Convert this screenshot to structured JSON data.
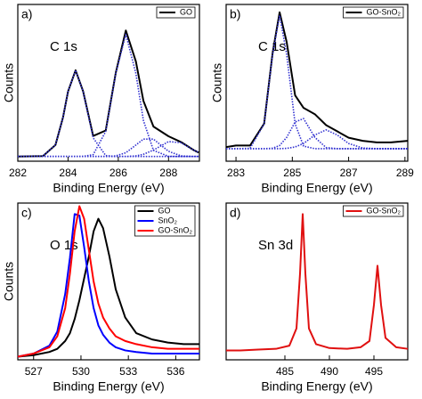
{
  "chart_data": [
    {
      "type": "line",
      "panel_label": "a)",
      "annotation": "C 1s",
      "xlabel": "Binding Energy (eV)",
      "ylabel": "Counts",
      "xlim": [
        282,
        289.23
      ],
      "xticks": [
        282,
        284,
        286,
        288
      ],
      "ylim": [
        0,
        1
      ],
      "legend": "upper right",
      "x": [
        282,
        283,
        283.5,
        283.8,
        284,
        284.3,
        284.6,
        285,
        285.5,
        285.9,
        286.3,
        286.7,
        287,
        287.4,
        288,
        288.5,
        289,
        289.2
      ],
      "series": [
        {
          "name": "GO",
          "color": "#000000",
          "values": [
            0.03,
            0.033,
            0.104,
            0.28,
            0.445,
            0.58,
            0.446,
            0.161,
            0.196,
            0.564,
            0.834,
            0.637,
            0.385,
            0.221,
            0.159,
            0.122,
            0.071,
            0.055
          ]
        },
        {
          "color": "#3030d0",
          "style": "dotted",
          "values": [
            0.03,
            0.033,
            0.104,
            0.28,
            0.445,
            0.58,
            0.445,
            0.149,
            0.036,
            0.03,
            0.03,
            0.03,
            0.03,
            0.03,
            0.03,
            0.03,
            0.03,
            0.03
          ]
        },
        {
          "color": "#3030d0",
          "style": "dotted",
          "values": [
            0.03,
            0.03,
            0.03,
            0.03,
            0.03,
            0.03,
            0.031,
            0.042,
            0.19,
            0.56,
            0.81,
            0.56,
            0.26,
            0.069,
            0.031,
            0.03,
            0.03,
            0.03
          ]
        },
        {
          "color": "#3030d0",
          "style": "dotted",
          "values": [
            0.03,
            0.03,
            0.03,
            0.03,
            0.03,
            0.03,
            0.03,
            0.03,
            0.03,
            0.034,
            0.054,
            0.103,
            0.141,
            0.141,
            0.063,
            0.034,
            0.03,
            0.03
          ]
        },
        {
          "color": "#3030d0",
          "style": "dotted",
          "values": [
            0.03,
            0.03,
            0.03,
            0.03,
            0.03,
            0.03,
            0.03,
            0.03,
            0.03,
            0.03,
            0.03,
            0.034,
            0.044,
            0.071,
            0.125,
            0.118,
            0.071,
            0.055
          ]
        }
      ]
    },
    {
      "type": "line",
      "panel_label": "b)",
      "annotation": "C 1s",
      "xlabel": "Binding Energy (eV)",
      "ylabel": "Counts",
      "xlim": [
        282.65,
        289.1
      ],
      "xticks": [
        283,
        285,
        287,
        289
      ],
      "ylim": [
        0,
        1
      ],
      "legend": "upper right",
      "x": [
        282.65,
        283,
        283.5,
        284,
        284.3,
        284.55,
        284.8,
        285.1,
        285.4,
        285.8,
        286.2,
        286.6,
        287,
        287.5,
        288,
        288.5,
        289.1
      ],
      "series": [
        {
          "name": "GO-SnO₂",
          "color": "#000000",
          "values": [
            0.09,
            0.1,
            0.1,
            0.24,
            0.69,
            0.95,
            0.76,
            0.42,
            0.34,
            0.3,
            0.23,
            0.19,
            0.15,
            0.13,
            0.12,
            0.12,
            0.13
          ]
        },
        {
          "color": "#3030d0",
          "style": "dotted",
          "values": [
            0.08,
            0.08,
            0.082,
            0.238,
            0.681,
            0.93,
            0.681,
            0.238,
            0.096,
            0.08,
            0.08,
            0.08,
            0.08,
            0.08,
            0.08,
            0.08,
            0.08
          ]
        },
        {
          "color": "#3030d0",
          "style": "dotted",
          "values": [
            0.08,
            0.08,
            0.08,
            0.08,
            0.083,
            0.1,
            0.152,
            0.25,
            0.272,
            0.152,
            0.087,
            0.08,
            0.08,
            0.08,
            0.08,
            0.08,
            0.08
          ]
        },
        {
          "color": "#3030d0",
          "style": "dotted",
          "values": [
            0.08,
            0.08,
            0.08,
            0.08,
            0.08,
            0.08,
            0.082,
            0.091,
            0.113,
            0.167,
            0.2,
            0.167,
            0.113,
            0.084,
            0.08,
            0.08,
            0.08
          ]
        }
      ]
    },
    {
      "type": "line",
      "panel_label": "c)",
      "annotation": "O 1s",
      "xlabel": "Binding Energy (eV)",
      "ylabel": "Counts",
      "xlim": [
        526,
        537.5
      ],
      "xticks": [
        527,
        530,
        533,
        536
      ],
      "ylim": [
        0,
        1
      ],
      "legend": "upper right",
      "x": [
        526,
        527,
        528,
        528.5,
        529,
        529.3,
        529.6,
        529.9,
        530.2,
        530.5,
        530.8,
        531.1,
        531.4,
        531.8,
        532.2,
        532.8,
        533.5,
        534.5,
        535.5,
        536.5,
        537.5
      ],
      "series": [
        {
          "name": "GO",
          "color": "#000000",
          "values": [
            0.02,
            0.03,
            0.05,
            0.07,
            0.12,
            0.17,
            0.26,
            0.38,
            0.52,
            0.66,
            0.82,
            0.9,
            0.84,
            0.66,
            0.45,
            0.27,
            0.17,
            0.13,
            0.11,
            0.1,
            0.1
          ]
        },
        {
          "name": "SnO₂",
          "color": "#0000ff",
          "values": [
            0.02,
            0.04,
            0.09,
            0.18,
            0.42,
            0.65,
            0.93,
            0.92,
            0.72,
            0.5,
            0.33,
            0.22,
            0.16,
            0.11,
            0.08,
            0.06,
            0.05,
            0.04,
            0.04,
            0.04,
            0.04
          ]
        },
        {
          "name": "GO-SnO₂",
          "color": "#ff0000",
          "values": [
            0.02,
            0.04,
            0.08,
            0.15,
            0.33,
            0.55,
            0.82,
            0.98,
            0.9,
            0.7,
            0.5,
            0.36,
            0.27,
            0.2,
            0.15,
            0.12,
            0.1,
            0.08,
            0.07,
            0.07,
            0.07
          ]
        }
      ]
    },
    {
      "type": "line",
      "panel_label": "d)",
      "annotation": "Sn 3d",
      "xlabel": "Binding Energy (eV)",
      "xlim": [
        478.4,
        498.8
      ],
      "xticks": [
        485,
        490,
        495
      ],
      "ylim": [
        0,
        1
      ],
      "legend": "upper right",
      "x": [
        478.4,
        480,
        482,
        484,
        485.5,
        486.3,
        486.7,
        487,
        487.3,
        487.7,
        488.5,
        490,
        492,
        493.5,
        494.5,
        495,
        495.4,
        495.8,
        496.3,
        497.5,
        498.8
      ],
      "series": [
        {
          "name": "GO-SnO₂",
          "color": "#e01010",
          "values": [
            0.06,
            0.06,
            0.065,
            0.07,
            0.09,
            0.2,
            0.55,
            0.93,
            0.55,
            0.2,
            0.1,
            0.075,
            0.07,
            0.08,
            0.12,
            0.35,
            0.6,
            0.35,
            0.14,
            0.08,
            0.07
          ]
        }
      ]
    }
  ]
}
